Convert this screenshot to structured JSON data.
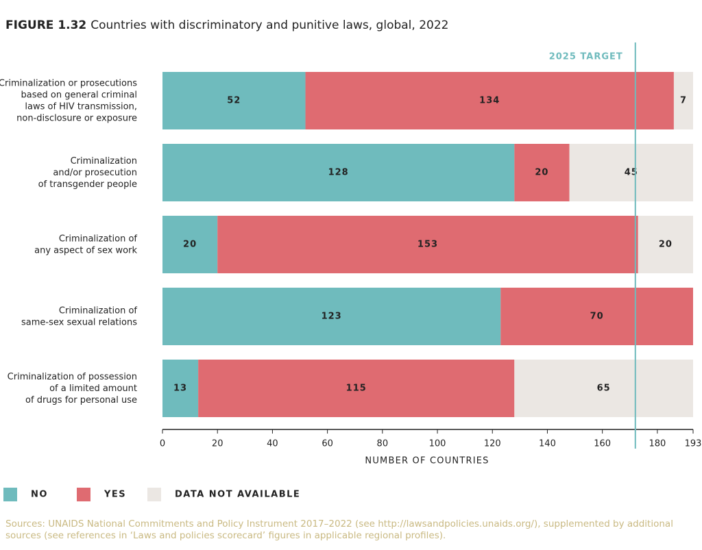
{
  "chart_data": {
    "type": "stacked-barh",
    "figure_label": "FIGURE 1.32",
    "title": "Countries with discriminatory and punitive laws, global, 2022",
    "categories": [
      "Criminalization or prosecutions\nbased on general criminal\nlaws of HIV transmission,\nnon-disclosure or exposure",
      "Criminalization\nand/or prosecution\nof transgender people",
      "Criminalization of\nany aspect of sex work",
      "Criminalization of\nsame-sex sexual relations",
      "Criminalization of possession\nof a limited amount\nof drugs for personal use"
    ],
    "series": [
      {
        "name": "NO",
        "color": "#6fbbbd",
        "values": [
          52,
          128,
          20,
          123,
          13
        ]
      },
      {
        "name": "YES",
        "color": "#df6b71",
        "values": [
          134,
          20,
          153,
          70,
          115
        ]
      },
      {
        "name": "DATA NOT AVAILABLE",
        "color": "#ebe7e3",
        "values": [
          7,
          45,
          20,
          null,
          65
        ]
      }
    ],
    "xlim": [
      0,
      193
    ],
    "xticks": [
      0,
      20,
      40,
      60,
      80,
      100,
      120,
      140,
      160,
      180,
      193
    ],
    "xlabel": "NUMBER OF COUNTRIES",
    "target": {
      "label": "2025 TARGET",
      "value": 172,
      "color": "#6fbbbd"
    },
    "source": "Sources: UNAIDS National Commitments and Policy Instrument 2017–2022 (see http://lawsandpolicies.unaids.org/), supplemented by additional sources (see references in ‘Laws and policies scorecard’ figures in applicable regional profiles)."
  }
}
